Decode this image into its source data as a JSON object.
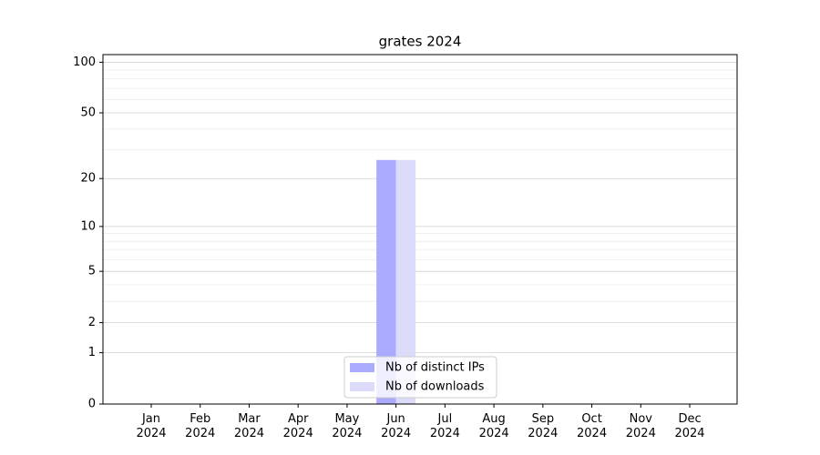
{
  "chart_data": {
    "type": "bar",
    "title": "grates 2024",
    "categories": [
      "Jan\n2024",
      "Feb\n2024",
      "Mar\n2024",
      "Apr\n2024",
      "May\n2024",
      "Jun\n2024",
      "Jul\n2024",
      "Aug\n2024",
      "Sep\n2024",
      "Oct\n2024",
      "Nov\n2024",
      "Dec\n2024"
    ],
    "series": [
      {
        "name": "Nb of distinct IPs",
        "color": "#aaaaff",
        "values": [
          0,
          0,
          0,
          0,
          0,
          26,
          0,
          0,
          0,
          0,
          0,
          0
        ]
      },
      {
        "name": "Nb of downloads",
        "color": "#dcdcfa",
        "values": [
          0,
          0,
          0,
          0,
          0,
          26,
          0,
          0,
          0,
          0,
          0,
          0
        ]
      }
    ],
    "yscale": "log1p",
    "ylim": [
      0,
      111
    ],
    "yticks": [
      0,
      1,
      2,
      5,
      10,
      20,
      50,
      100
    ],
    "yminorticks": [
      3,
      4,
      6,
      7,
      8,
      9,
      30,
      40,
      60,
      70,
      80,
      90
    ],
    "grid": true,
    "legend": "lower center"
  }
}
